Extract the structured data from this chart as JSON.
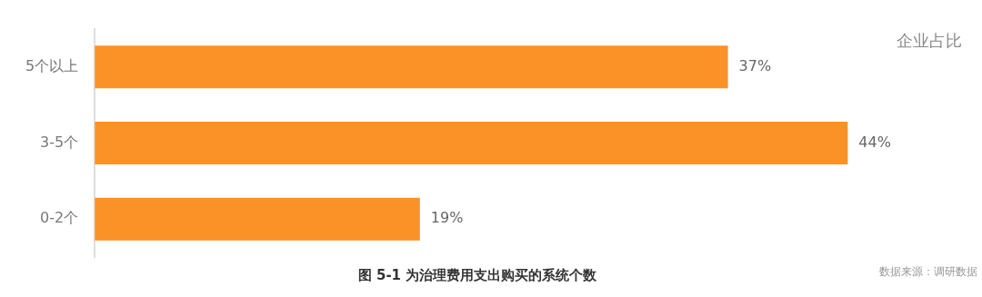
{
  "chart_data": {
    "type": "bar",
    "orientation": "horizontal",
    "title": "图 5-1 为治理费用支出购买的系统个数",
    "categories": [
      "5个以上",
      "3-5个",
      "0-2个"
    ],
    "values": [
      37,
      44,
      19
    ],
    "value_labels": [
      "37%",
      "44%",
      "19%"
    ],
    "color": "#fb9227",
    "grid": false,
    "legend": false,
    "annotations": [
      "企业占比",
      "数据来源：调研数据"
    ]
  }
}
